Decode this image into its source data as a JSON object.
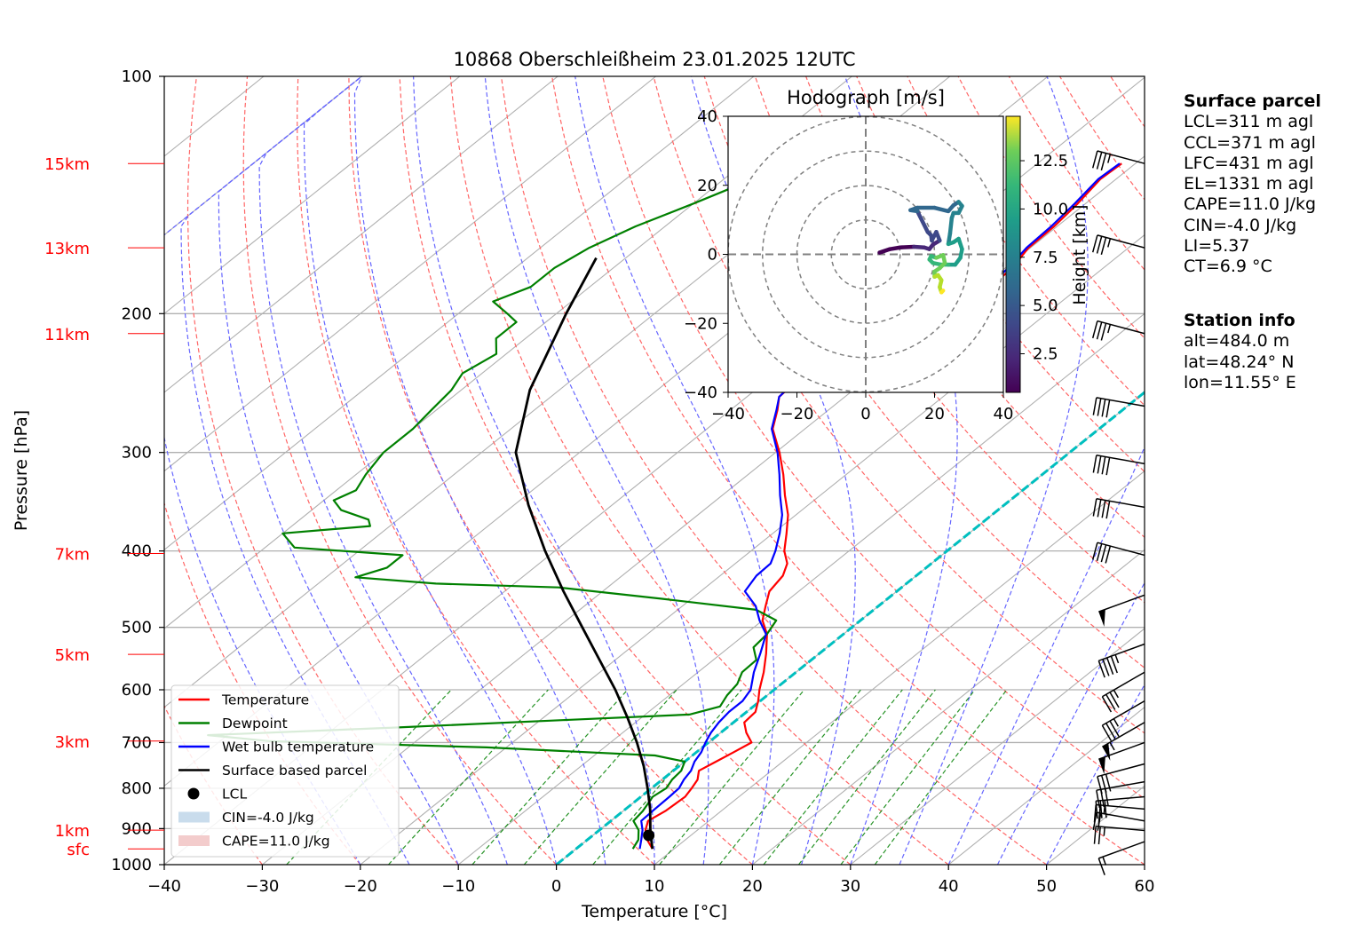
{
  "title": "10868 Oberschleißheim 23.01.2025 12UTC",
  "xlabel": "Temperature [°C]",
  "ylabel": "Pressure [hPa]",
  "colors": {
    "temperature": "#ff0000",
    "dewpoint": "#008000",
    "wetbulb": "#0000ff",
    "parcel": "#000000",
    "zero_isotherm": "#00bfbf",
    "dry_adiabat": "#ff6666",
    "moist_adiabat": "#6666ff",
    "mixing_ratio": "#008000",
    "grid": "#b0b0b0",
    "height_marker": "#ff0000",
    "cin_fill": "#c9dcec",
    "cape_fill": "#f3cccc"
  },
  "chart_data": {
    "type": "line",
    "subtype": "skew-T log-p",
    "title": "10868 Oberschleißheim 23.01.2025 12UTC",
    "xlim": [
      -40,
      60
    ],
    "ylim": [
      1000,
      100
    ],
    "yscale": "log",
    "x_ticks": [
      -40,
      -30,
      -20,
      -10,
      0,
      10,
      20,
      30,
      40,
      50,
      60
    ],
    "x_tick_labels": [
      "−40",
      "−30",
      "−20",
      "−10",
      "0",
      "10",
      "20",
      "30",
      "40",
      "50",
      "60"
    ],
    "y_ticks": [
      1000,
      900,
      800,
      700,
      600,
      500,
      400,
      300,
      200,
      100
    ],
    "height_markers": [
      {
        "label": "15km",
        "pressure": 129
      },
      {
        "label": "13km",
        "pressure": 165
      },
      {
        "label": "11km",
        "pressure": 212
      },
      {
        "label": "7km",
        "pressure": 403
      },
      {
        "label": "5km",
        "pressure": 541
      },
      {
        "label": "3km",
        "pressure": 697
      },
      {
        "label": "1km",
        "pressure": 904
      },
      {
        "label": "sfc",
        "pressure": 955
      }
    ],
    "series": [
      {
        "name": "Temperature",
        "points": [
          [
            955,
            7.8
          ],
          [
            930,
            6.1
          ],
          [
            904,
            4.7
          ],
          [
            880,
            3.8
          ],
          [
            855,
            4.3
          ],
          [
            820,
            4.5
          ],
          [
            800,
            4.1
          ],
          [
            780,
            3.6
          ],
          [
            760,
            2.6
          ],
          [
            740,
            3.2
          ],
          [
            720,
            3.8
          ],
          [
            700,
            4.4
          ],
          [
            680,
            2.6
          ],
          [
            660,
            1.1
          ],
          [
            640,
            0.9
          ],
          [
            620,
            -0.2
          ],
          [
            600,
            -1.5
          ],
          [
            570,
            -3.3
          ],
          [
            540,
            -5.4
          ],
          [
            510,
            -7.8
          ],
          [
            490,
            -10.0
          ],
          [
            470,
            -11.5
          ],
          [
            450,
            -13.0
          ],
          [
            430,
            -13.6
          ],
          [
            415,
            -14.7
          ],
          [
            400,
            -16.6
          ],
          [
            380,
            -18.6
          ],
          [
            360,
            -20.8
          ],
          [
            340,
            -23.6
          ],
          [
            320,
            -26.4
          ],
          [
            300,
            -29.6
          ],
          [
            280,
            -33.3
          ],
          [
            265,
            -35.2
          ],
          [
            255,
            -36.7
          ],
          [
            245,
            -36.9
          ],
          [
            238,
            -35.9
          ],
          [
            232,
            -34.6
          ],
          [
            225,
            -33.5
          ],
          [
            218,
            -32.1
          ],
          [
            210,
            -31.1
          ],
          [
            203,
            -29.3
          ],
          [
            195,
            -28.8
          ],
          [
            185,
            -29.1
          ],
          [
            175,
            -29.3
          ],
          [
            165,
            -30.2
          ],
          [
            155,
            -30.3
          ],
          [
            145,
            -30.8
          ],
          [
            135,
            -31.6
          ],
          [
            129,
            -31.4
          ]
        ]
      },
      {
        "name": "Dewpoint",
        "points": [
          [
            955,
            5.8
          ],
          [
            930,
            5.2
          ],
          [
            904,
            4.0
          ],
          [
            880,
            2.3
          ],
          [
            855,
            2.0
          ],
          [
            820,
            1.2
          ],
          [
            800,
            1.5
          ],
          [
            780,
            1.0
          ],
          [
            760,
            0.8
          ],
          [
            740,
            0.0
          ],
          [
            727,
            -3.8
          ],
          [
            710,
            -22
          ],
          [
            697,
            -45
          ],
          [
            685,
            -52
          ],
          [
            670,
            -34
          ],
          [
            655,
            -17
          ],
          [
            645,
            -5.5
          ],
          [
            630,
            -3.4
          ],
          [
            610,
            -4.1
          ],
          [
            590,
            -4.5
          ],
          [
            570,
            -5.5
          ],
          [
            550,
            -5.6
          ],
          [
            530,
            -7.5
          ],
          [
            510,
            -7.8
          ],
          [
            490,
            -8.6
          ],
          [
            475,
            -12
          ],
          [
            460,
            -23
          ],
          [
            445,
            -35
          ],
          [
            440,
            -48
          ],
          [
            432,
            -57
          ],
          [
            420,
            -55
          ],
          [
            405,
            -55
          ],
          [
            396,
            -67
          ],
          [
            380,
            -70
          ],
          [
            372,
            -62
          ],
          [
            365,
            -63
          ],
          [
            355,
            -67
          ],
          [
            345,
            -69
          ],
          [
            335,
            -68
          ],
          [
            320,
            -69
          ],
          [
            300,
            -70
          ],
          [
            280,
            -70
          ],
          [
            265,
            -70.5
          ],
          [
            250,
            -71
          ],
          [
            238,
            -72
          ],
          [
            225,
            -71
          ],
          [
            215,
            -73
          ],
          [
            205,
            -73
          ],
          [
            200,
            -75
          ],
          [
            193,
            -78
          ],
          [
            185,
            -76
          ],
          [
            175,
            -76
          ],
          [
            165,
            -75
          ],
          [
            155,
            -73
          ],
          [
            145,
            -70
          ],
          [
            135,
            -67
          ],
          [
            129,
            -65.5
          ]
        ]
      },
      {
        "name": "Wet bulb temperature",
        "points": [
          [
            955,
            6.5
          ],
          [
            930,
            5.5
          ],
          [
            904,
            4.4
          ],
          [
            880,
            3.1
          ],
          [
            855,
            3.0
          ],
          [
            820,
            2.9
          ],
          [
            800,
            2.8
          ],
          [
            780,
            2.2
          ],
          [
            760,
            1.8
          ],
          [
            740,
            1.0
          ],
          [
            720,
            0.5
          ],
          [
            700,
            -0.3
          ],
          [
            680,
            -1.0
          ],
          [
            660,
            -1.5
          ],
          [
            640,
            -1.8
          ],
          [
            620,
            -1.8
          ],
          [
            600,
            -2.4
          ],
          [
            570,
            -4.3
          ],
          [
            540,
            -6.0
          ],
          [
            510,
            -7.9
          ],
          [
            490,
            -10.3
          ],
          [
            470,
            -12.5
          ],
          [
            450,
            -15.5
          ],
          [
            430,
            -16.3
          ],
          [
            415,
            -16.4
          ],
          [
            400,
            -17.5
          ],
          [
            380,
            -19.3
          ],
          [
            360,
            -21.4
          ],
          [
            340,
            -24.1
          ],
          [
            320,
            -26.8
          ],
          [
            300,
            -29.8
          ],
          [
            280,
            -33.4
          ],
          [
            265,
            -35.3
          ],
          [
            255,
            -36.7
          ],
          [
            245,
            -37.0
          ],
          [
            238,
            -35.9
          ],
          [
            232,
            -34.6
          ],
          [
            225,
            -33.6
          ],
          [
            218,
            -32.3
          ],
          [
            210,
            -31.3
          ],
          [
            203,
            -29.5
          ],
          [
            195,
            -29.1
          ],
          [
            185,
            -29.4
          ],
          [
            175,
            -29.7
          ],
          [
            165,
            -30.4
          ],
          [
            155,
            -30.6
          ],
          [
            145,
            -31.1
          ],
          [
            135,
            -31.8
          ],
          [
            129,
            -31.6
          ]
        ]
      },
      {
        "name": "Surface based parcel",
        "points": [
          [
            955,
            7.8
          ],
          [
            920,
            6.0
          ],
          [
            900,
            5.0
          ],
          [
            850,
            2.5
          ],
          [
            800,
            -0.4
          ],
          [
            750,
            -3.6
          ],
          [
            700,
            -7.3
          ],
          [
            650,
            -11.5
          ],
          [
            600,
            -16.2
          ],
          [
            550,
            -21.6
          ],
          [
            500,
            -27.5
          ],
          [
            450,
            -34.0
          ],
          [
            400,
            -41.0
          ],
          [
            350,
            -48.5
          ],
          [
            300,
            -56.5
          ],
          [
            250,
            -63.0
          ],
          [
            200,
            -69.0
          ],
          [
            170,
            -73.0
          ]
        ]
      }
    ],
    "lcl": {
      "name": "LCL",
      "pressure": 918,
      "temperature": 5.7
    },
    "zero_isotherm": true,
    "legend_placement": "lower-left",
    "legend": [
      "Temperature",
      "Dewpoint",
      "Wet bulb temperature",
      "Surface based parcel",
      "LCL",
      "CIN=-4.0 J/kg",
      "CAPE=11.0 J/kg"
    ],
    "wind_barbs": [
      {
        "pressure": 129,
        "speed_kt": 35,
        "dir_deg": 285
      },
      {
        "pressure": 165,
        "speed_kt": 35,
        "dir_deg": 285
      },
      {
        "pressure": 212,
        "speed_kt": 35,
        "dir_deg": 285
      },
      {
        "pressure": 262,
        "speed_kt": 40,
        "dir_deg": 280
      },
      {
        "pressure": 310,
        "speed_kt": 40,
        "dir_deg": 280
      },
      {
        "pressure": 352,
        "speed_kt": 40,
        "dir_deg": 280
      },
      {
        "pressure": 405,
        "speed_kt": 40,
        "dir_deg": 285
      },
      {
        "pressure": 455,
        "speed_kt": 50,
        "dir_deg": 250
      },
      {
        "pressure": 525,
        "speed_kt": 45,
        "dir_deg": 250
      },
      {
        "pressure": 570,
        "speed_kt": 35,
        "dir_deg": 240
      },
      {
        "pressure": 620,
        "speed_kt": 35,
        "dir_deg": 240
      },
      {
        "pressure": 660,
        "speed_kt": 55,
        "dir_deg": 240
      },
      {
        "pressure": 700,
        "speed_kt": 50,
        "dir_deg": 250
      },
      {
        "pressure": 745,
        "speed_kt": 30,
        "dir_deg": 255
      },
      {
        "pressure": 785,
        "speed_kt": 30,
        "dir_deg": 260
      },
      {
        "pressure": 820,
        "speed_kt": 30,
        "dir_deg": 265
      },
      {
        "pressure": 850,
        "speed_kt": 25,
        "dir_deg": 275
      },
      {
        "pressure": 880,
        "speed_kt": 20,
        "dir_deg": 280
      },
      {
        "pressure": 905,
        "speed_kt": 25,
        "dir_deg": 275
      },
      {
        "pressure": 935,
        "speed_kt": 15,
        "dir_deg": 250
      }
    ],
    "hodograph": {
      "title": "Hodograph [m/s]",
      "xlim": [
        -40,
        40
      ],
      "ylim": [
        -40,
        40
      ],
      "ticks": [
        -40,
        -20,
        0,
        20,
        40
      ],
      "tick_labels": [
        "−40",
        "−20",
        "0",
        "20",
        "40"
      ],
      "rings": [
        10,
        20,
        30,
        40
      ],
      "colorbar_label": "Height [km]",
      "colorbar_ticks": [
        "2.5",
        "5.0",
        "7.5",
        "10.0",
        "12.5"
      ],
      "colorbar_range_km": [
        0.5,
        14.8
      ],
      "points": [
        [
          4,
          0.5,
          0.5
        ],
        [
          7,
          1.5,
          0.8
        ],
        [
          10,
          2,
          1
        ],
        [
          14,
          2.2,
          1.5
        ],
        [
          17,
          2,
          2
        ],
        [
          18.5,
          1.5,
          2.3
        ],
        [
          19.5,
          2.8,
          2.6
        ],
        [
          21.5,
          4,
          3
        ],
        [
          20.5,
          6.5,
          3.4
        ],
        [
          19.2,
          4,
          3.8
        ],
        [
          19,
          5.5,
          4.1
        ],
        [
          18,
          6.5,
          4.3
        ],
        [
          15,
          12.5,
          4.5
        ],
        [
          13,
          12.8,
          4.8
        ],
        [
          15,
          13.5,
          5.1
        ],
        [
          20,
          13.5,
          5.4
        ],
        [
          24,
          12.5,
          5.7
        ],
        [
          25.5,
          14.2,
          5.9
        ],
        [
          27,
          15.2,
          6.1
        ],
        [
          28,
          14,
          6.3
        ],
        [
          27,
          12,
          6.5
        ],
        [
          25.5,
          12,
          6.7
        ],
        [
          25,
          10.5,
          6.9
        ],
        [
          24.5,
          6,
          7.2
        ],
        [
          24,
          3,
          7.5
        ],
        [
          25.5,
          3.5,
          7.8
        ],
        [
          27,
          4.5,
          8.1
        ],
        [
          28,
          1.5,
          8.4
        ],
        [
          27.5,
          -1,
          8.7
        ],
        [
          26,
          -3,
          9
        ],
        [
          24,
          -3,
          9.3
        ],
        [
          22,
          -3,
          9.6
        ],
        [
          19.5,
          -2.5,
          9.9
        ],
        [
          18.5,
          -1.5,
          10.2
        ],
        [
          19,
          -0.5,
          10.5
        ],
        [
          20.5,
          -1,
          10.8
        ],
        [
          22.5,
          -0.2,
          11.1
        ],
        [
          23,
          -2.5,
          11.4
        ],
        [
          21.5,
          -4,
          11.7
        ],
        [
          20,
          -5,
          12
        ],
        [
          20,
          -6.5,
          12.4
        ],
        [
          21,
          -6,
          12.8
        ],
        [
          22,
          -7.5,
          13.2
        ],
        [
          21.5,
          -9.5,
          13.6
        ],
        [
          22,
          -11,
          14
        ],
        [
          22.5,
          -10.5,
          14.4
        ]
      ]
    }
  },
  "info": {
    "surface_title": "Surface parcel",
    "lines": [
      "LCL=311 m agl",
      "CCL=371 m agl",
      "LFC=431 m agl",
      "EL=1331 m agl",
      "CAPE=11.0 J/kg",
      "CIN=-4.0 J/kg",
      "LI=5.37",
      "CT=6.9 °C"
    ],
    "station_title": "Station info",
    "station_lines": [
      "alt=484.0 m",
      "lat=48.24° N",
      "lon=11.55° E"
    ]
  }
}
